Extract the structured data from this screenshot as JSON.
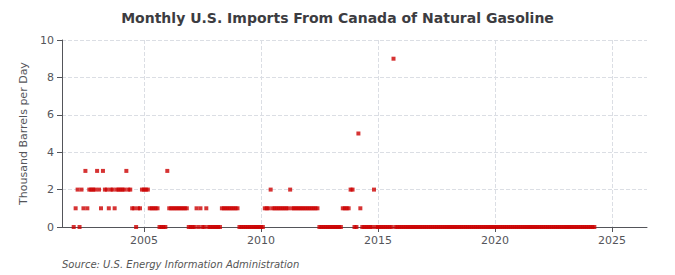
{
  "chart_data": {
    "type": "scatter",
    "title": "Monthly U.S. Imports From Canada of Natural Gasoline",
    "ylabel": "Thousand Barrels per Day",
    "source": "Source: U.S. Energy Information Administration",
    "color": "#cc0000",
    "marker": "square",
    "grid": true,
    "xlim": [
      2001.5,
      2026.5
    ],
    "xticks": [
      2005,
      2010,
      2015,
      2020,
      2025
    ],
    "ylim": [
      0,
      10
    ],
    "yticks": [
      0,
      2,
      4,
      6,
      8,
      10
    ],
    "x": [
      2002.0,
      2002.083,
      2002.167,
      2002.25,
      2002.333,
      2002.417,
      2002.5,
      2002.583,
      2002.667,
      2002.75,
      2002.833,
      2002.917,
      2003.0,
      2003.083,
      2003.167,
      2003.25,
      2003.333,
      2003.417,
      2003.5,
      2003.583,
      2003.667,
      2003.75,
      2003.833,
      2003.917,
      2004.0,
      2004.083,
      2004.167,
      2004.25,
      2004.333,
      2004.417,
      2004.5,
      2004.583,
      2004.667,
      2004.75,
      2004.833,
      2004.917,
      2005.0,
      2005.083,
      2005.167,
      2005.25,
      2005.333,
      2005.417,
      2005.5,
      2005.583,
      2005.667,
      2005.75,
      2005.833,
      2005.917,
      2006.0,
      2006.083,
      2006.167,
      2006.25,
      2006.333,
      2006.417,
      2006.5,
      2006.583,
      2006.667,
      2006.75,
      2006.833,
      2006.917,
      2007.0,
      2007.083,
      2007.167,
      2007.25,
      2007.333,
      2007.417,
      2007.5,
      2007.583,
      2007.667,
      2007.75,
      2007.833,
      2007.917,
      2008.0,
      2008.083,
      2008.167,
      2008.25,
      2008.333,
      2008.417,
      2008.5,
      2008.583,
      2008.667,
      2008.75,
      2008.833,
      2008.917,
      2009.0,
      2009.083,
      2009.167,
      2009.25,
      2009.333,
      2009.417,
      2009.5,
      2009.583,
      2009.667,
      2009.75,
      2009.833,
      2009.917,
      2010.0,
      2010.083,
      2010.167,
      2010.25,
      2010.333,
      2010.417,
      2010.5,
      2010.583,
      2010.667,
      2010.75,
      2010.833,
      2010.917,
      2011.0,
      2011.083,
      2011.167,
      2011.25,
      2011.333,
      2011.417,
      2011.5,
      2011.583,
      2011.667,
      2011.75,
      2011.833,
      2011.917,
      2012.0,
      2012.083,
      2012.167,
      2012.25,
      2012.333,
      2012.417,
      2012.5,
      2012.583,
      2012.667,
      2012.75,
      2012.833,
      2012.917,
      2013.0,
      2013.083,
      2013.167,
      2013.25,
      2013.333,
      2013.417,
      2013.5,
      2013.583,
      2013.667,
      2013.75,
      2013.833,
      2013.917,
      2014.0,
      2014.083,
      2014.167,
      2014.25,
      2014.333,
      2014.417,
      2014.5,
      2014.583,
      2014.667,
      2014.75,
      2014.833,
      2014.917,
      2015.0,
      2015.083,
      2015.167,
      2015.25,
      2015.333,
      2015.417,
      2015.5,
      2015.583,
      2015.667,
      2015.75,
      2015.833,
      2015.917,
      2016.0,
      2016.083,
      2016.167,
      2016.25,
      2016.333,
      2016.417,
      2016.5,
      2016.583,
      2016.667,
      2016.75,
      2016.833,
      2016.917,
      2017.0,
      2017.083,
      2017.167,
      2017.25,
      2017.333,
      2017.417,
      2017.5,
      2017.583,
      2017.667,
      2017.75,
      2017.833,
      2017.917,
      2018.0,
      2018.083,
      2018.167,
      2018.25,
      2018.333,
      2018.417,
      2018.5,
      2018.583,
      2018.667,
      2018.75,
      2018.833,
      2018.917,
      2019.0,
      2019.083,
      2019.167,
      2019.25,
      2019.333,
      2019.417,
      2019.5,
      2019.583,
      2019.667,
      2019.75,
      2019.833,
      2019.917,
      2020.0,
      2020.083,
      2020.167,
      2020.25,
      2020.333,
      2020.417,
      2020.5,
      2020.583,
      2020.667,
      2020.75,
      2020.833,
      2020.917,
      2021.0,
      2021.083,
      2021.167,
      2021.25,
      2021.333,
      2021.417,
      2021.5,
      2021.583,
      2021.667,
      2021.75,
      2021.833,
      2021.917,
      2022.0,
      2022.083,
      2022.167,
      2022.25,
      2022.333,
      2022.417,
      2022.5,
      2022.583,
      2022.667,
      2022.75,
      2022.833,
      2022.917,
      2023.0,
      2023.083,
      2023.167,
      2023.25,
      2023.333,
      2023.417,
      2023.5,
      2023.583,
      2023.667,
      2023.75,
      2023.833,
      2023.917,
      2024.0,
      2024.083,
      2024.167,
      2024.25
    ],
    "values": [
      0,
      1,
      2,
      0,
      2,
      1,
      3,
      1,
      2,
      2,
      2,
      2,
      3,
      2,
      1,
      3,
      2,
      2,
      1,
      2,
      2,
      1,
      2,
      2,
      2,
      2,
      2,
      3,
      2,
      2,
      1,
      1,
      0,
      1,
      1,
      2,
      2,
      2,
      2,
      1,
      1,
      1,
      1,
      1,
      0,
      0,
      0,
      0,
      3,
      1,
      1,
      1,
      1,
      1,
      1,
      1,
      1,
      1,
      1,
      0,
      0,
      0,
      0,
      1,
      0,
      1,
      0,
      0,
      1,
      0,
      0,
      0,
      0,
      0,
      0,
      0,
      1,
      1,
      1,
      1,
      1,
      1,
      1,
      1,
      1,
      0,
      0,
      0,
      0,
      0,
      0,
      0,
      0,
      0,
      0,
      0,
      0,
      0,
      1,
      1,
      1,
      2,
      1,
      1,
      1,
      1,
      1,
      1,
      1,
      1,
      1,
      2,
      1,
      1,
      1,
      1,
      1,
      1,
      1,
      1,
      1,
      1,
      1,
      1,
      1,
      1,
      0,
      0,
      0,
      0,
      0,
      0,
      0,
      0,
      0,
      0,
      0,
      0,
      1,
      1,
      1,
      1,
      2,
      2,
      0,
      0,
      5,
      1,
      0,
      0,
      0,
      0,
      0,
      0,
      2,
      0,
      0,
      0,
      0,
      0,
      0,
      0,
      0,
      0,
      9,
      0,
      0,
      0,
      0,
      0,
      0,
      0,
      0,
      0,
      0,
      0,
      0,
      0,
      0,
      0,
      0,
      0,
      0,
      0,
      0,
      0,
      0,
      0,
      0,
      0,
      0,
      0,
      0,
      0,
      0,
      0,
      0,
      0,
      0,
      0,
      0,
      0,
      0,
      0,
      0,
      0,
      0,
      0,
      0,
      0,
      0,
      0,
      0,
      0,
      0,
      0,
      0,
      0,
      0,
      0,
      0,
      0,
      0,
      0,
      0,
      0,
      0,
      0,
      0,
      0,
      0,
      0,
      0,
      0,
      0,
      0,
      0,
      0,
      0,
      0,
      0,
      0,
      0,
      0,
      0,
      0,
      0,
      0,
      0,
      0,
      0,
      0,
      0,
      0,
      0,
      0,
      0,
      0,
      0,
      0,
      0,
      0,
      0,
      0,
      0,
      0,
      0,
      0
    ]
  }
}
